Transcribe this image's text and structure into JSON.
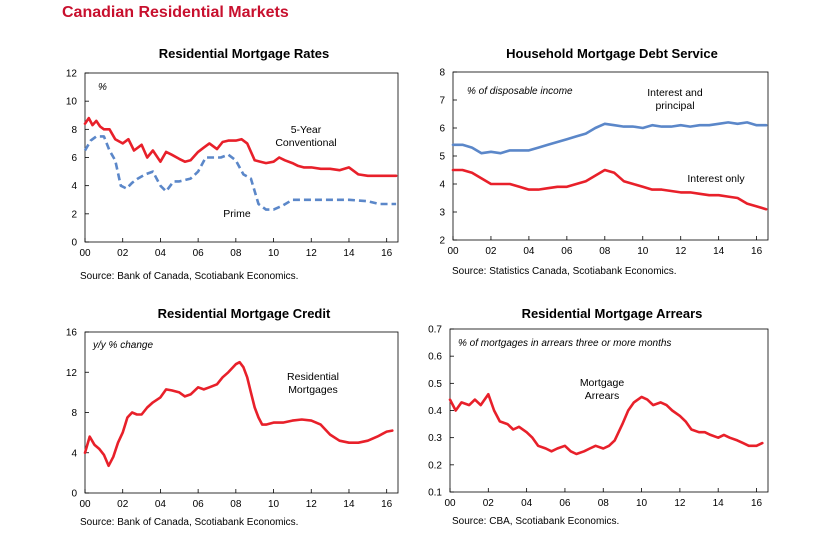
{
  "page_title": "Canadian Residential Markets",
  "chart_data": [
    {
      "type": "line",
      "title": "Residential Mortgage Rates",
      "ylabel": "%",
      "source": "Source: Bank of Canada, Scotiabank Economics.",
      "ylim": [
        0,
        12
      ],
      "yticks": [
        "0",
        "2",
        "4",
        "6",
        "8",
        "10",
        "12"
      ],
      "xlim": [
        2000,
        2016.6
      ],
      "xticks": [
        "00",
        "02",
        "04",
        "06",
        "08",
        "10",
        "12",
        "14",
        "16"
      ],
      "series": [
        {
          "name": "5-Year Conventional",
          "label_lines": [
            "5-Year",
            "Conventional"
          ],
          "color": "#e8202a",
          "dash": "solid",
          "x": [
            2000.0,
            2000.2,
            2000.4,
            2000.6,
            2000.8,
            2001.0,
            2001.3,
            2001.6,
            2002.0,
            2002.3,
            2002.6,
            2003.0,
            2003.3,
            2003.6,
            2004.0,
            2004.3,
            2004.6,
            2005.0,
            2005.3,
            2005.6,
            2006.0,
            2006.3,
            2006.6,
            2007.0,
            2007.3,
            2007.6,
            2008.0,
            2008.3,
            2008.6,
            2009.0,
            2009.3,
            2009.6,
            2010.0,
            2010.3,
            2010.6,
            2011.0,
            2011.3,
            2011.6,
            2012.0,
            2012.5,
            2013.0,
            2013.5,
            2014.0,
            2014.5,
            2015.0,
            2015.5,
            2016.0,
            2016.5
          ],
          "y": [
            8.4,
            8.8,
            8.3,
            8.6,
            8.2,
            8.0,
            8.0,
            7.3,
            7.0,
            7.3,
            6.5,
            6.9,
            6.0,
            6.5,
            5.7,
            6.4,
            6.2,
            5.9,
            5.7,
            5.8,
            6.4,
            6.7,
            7.0,
            6.6,
            7.1,
            7.2,
            7.2,
            7.3,
            7.0,
            5.8,
            5.7,
            5.6,
            5.7,
            6.0,
            5.8,
            5.6,
            5.4,
            5.3,
            5.3,
            5.2,
            5.2,
            5.1,
            5.3,
            4.8,
            4.7,
            4.7,
            4.7,
            4.7
          ]
        },
        {
          "name": "Prime",
          "color": "#5b87c9",
          "dash": "dash",
          "x": [
            2000.0,
            2000.3,
            2000.6,
            2001.0,
            2001.3,
            2001.6,
            2001.9,
            2002.2,
            2002.5,
            2002.8,
            2003.2,
            2003.6,
            2004.0,
            2004.3,
            2004.7,
            2005.0,
            2005.6,
            2006.0,
            2006.4,
            2006.8,
            2007.2,
            2007.6,
            2008.0,
            2008.4,
            2008.8,
            2009.2,
            2009.6,
            2010.0,
            2010.5,
            2011.0,
            2012.0,
            2013.0,
            2014.0,
            2015.0,
            2015.6,
            2016.5
          ],
          "y": [
            6.5,
            7.2,
            7.5,
            7.5,
            6.5,
            5.8,
            4.0,
            3.8,
            4.2,
            4.5,
            4.8,
            5.0,
            4.0,
            3.6,
            4.3,
            4.3,
            4.5,
            5.0,
            6.0,
            6.0,
            6.0,
            6.2,
            5.8,
            4.8,
            4.5,
            2.7,
            2.3,
            2.3,
            2.6,
            3.0,
            3.0,
            3.0,
            3.0,
            2.9,
            2.7,
            2.7
          ]
        }
      ]
    },
    {
      "type": "line",
      "title": "Household Mortgage Debt Service",
      "ylabel": "% of disposable income",
      "source": "Source: Statistics Canada, Scotiabank Economics.",
      "ylim": [
        2,
        8
      ],
      "yticks": [
        "2",
        "3",
        "4",
        "5",
        "6",
        "7",
        "8"
      ],
      "xlim": [
        2000,
        2016.6
      ],
      "xticks": [
        "00",
        "02",
        "04",
        "06",
        "08",
        "10",
        "12",
        "14",
        "16"
      ],
      "series": [
        {
          "name": "Interest and principal",
          "label_lines": [
            "Interest and",
            "principal"
          ],
          "color": "#5b87c9",
          "dash": "solid",
          "x": [
            2000.0,
            2000.5,
            2001.0,
            2001.5,
            2002.0,
            2002.5,
            2003.0,
            2003.5,
            2004.0,
            2004.5,
            2005.0,
            2005.5,
            2006.0,
            2006.5,
            2007.0,
            2007.5,
            2008.0,
            2008.5,
            2009.0,
            2009.5,
            2010.0,
            2010.5,
            2011.0,
            2011.5,
            2012.0,
            2012.5,
            2013.0,
            2013.5,
            2014.0,
            2014.5,
            2015.0,
            2015.5,
            2016.0,
            2016.5
          ],
          "y": [
            5.4,
            5.4,
            5.3,
            5.1,
            5.15,
            5.1,
            5.2,
            5.2,
            5.2,
            5.3,
            5.4,
            5.5,
            5.6,
            5.7,
            5.8,
            6.0,
            6.15,
            6.1,
            6.05,
            6.05,
            6.0,
            6.1,
            6.05,
            6.05,
            6.1,
            6.05,
            6.1,
            6.1,
            6.15,
            6.2,
            6.15,
            6.2,
            6.1,
            6.1
          ]
        },
        {
          "name": "Interest only",
          "color": "#e8202a",
          "dash": "solid",
          "x": [
            2000.0,
            2000.5,
            2001.0,
            2001.5,
            2002.0,
            2002.5,
            2003.0,
            2003.5,
            2004.0,
            2004.5,
            2005.0,
            2005.5,
            2006.0,
            2006.5,
            2007.0,
            2007.5,
            2008.0,
            2008.5,
            2009.0,
            2009.5,
            2010.0,
            2010.5,
            2011.0,
            2011.5,
            2012.0,
            2012.5,
            2013.0,
            2013.5,
            2014.0,
            2014.5,
            2015.0,
            2015.5,
            2016.0,
            2016.5
          ],
          "y": [
            4.5,
            4.5,
            4.4,
            4.2,
            4.0,
            4.0,
            4.0,
            3.9,
            3.8,
            3.8,
            3.85,
            3.9,
            3.9,
            4.0,
            4.1,
            4.3,
            4.5,
            4.4,
            4.1,
            4.0,
            3.9,
            3.8,
            3.8,
            3.75,
            3.7,
            3.7,
            3.65,
            3.6,
            3.6,
            3.55,
            3.5,
            3.3,
            3.2,
            3.1
          ]
        }
      ]
    },
    {
      "type": "line",
      "title": "Residential Mortgage Credit",
      "ylabel": "y/y % change",
      "source": "Source: Bank of Canada, Scotiabank Economics.",
      "ylim": [
        0,
        16
      ],
      "yticks": [
        "0",
        "4",
        "8",
        "12",
        "16"
      ],
      "xlim": [
        2000,
        2016.6
      ],
      "xticks": [
        "00",
        "02",
        "04",
        "06",
        "08",
        "10",
        "12",
        "14",
        "16"
      ],
      "series": [
        {
          "name": "Residential Mortgages",
          "label_lines": [
            "Residential",
            "Mortgages"
          ],
          "color": "#e8202a",
          "dash": "solid",
          "x": [
            2000.0,
            2000.25,
            2000.5,
            2000.75,
            2001.0,
            2001.25,
            2001.5,
            2001.75,
            2002.0,
            2002.25,
            2002.5,
            2002.75,
            2003.0,
            2003.3,
            2003.6,
            2004.0,
            2004.3,
            2004.6,
            2005.0,
            2005.3,
            2005.6,
            2006.0,
            2006.3,
            2006.6,
            2007.0,
            2007.3,
            2007.6,
            2008.0,
            2008.2,
            2008.4,
            2008.6,
            2008.8,
            2009.0,
            2009.2,
            2009.4,
            2009.6,
            2010.0,
            2010.5,
            2011.0,
            2011.5,
            2012.0,
            2012.5,
            2013.0,
            2013.5,
            2014.0,
            2014.5,
            2015.0,
            2015.5,
            2016.0,
            2016.3
          ],
          "y": [
            4.0,
            5.6,
            4.8,
            4.4,
            3.8,
            2.7,
            3.6,
            5.0,
            6.0,
            7.5,
            8.0,
            7.8,
            7.8,
            8.5,
            9.0,
            9.5,
            10.3,
            10.2,
            10.0,
            9.6,
            9.8,
            10.5,
            10.3,
            10.5,
            10.8,
            11.5,
            12.0,
            12.8,
            13.0,
            12.5,
            11.5,
            10.0,
            8.5,
            7.5,
            6.8,
            6.8,
            7.0,
            7.0,
            7.2,
            7.3,
            7.2,
            6.8,
            5.8,
            5.2,
            5.0,
            5.0,
            5.2,
            5.6,
            6.1,
            6.2
          ]
        }
      ]
    },
    {
      "type": "line",
      "title": "Residential Mortgage Arrears",
      "ylabel": "% of mortgages in arrears three or more months",
      "source": "Source: CBA, Scotiabank Economics.",
      "ylim": [
        0.1,
        0.7
      ],
      "yticks": [
        "0.1",
        "0.2",
        "0.3",
        "0.4",
        "0.5",
        "0.6",
        "0.7"
      ],
      "xlim": [
        2000,
        2016.6
      ],
      "xticks": [
        "00",
        "02",
        "04",
        "06",
        "08",
        "10",
        "12",
        "14",
        "16"
      ],
      "series": [
        {
          "name": "Mortgage Arrears",
          "label_lines": [
            "Mortgage",
            "Arrears"
          ],
          "color": "#e8202a",
          "dash": "solid",
          "x": [
            2000.0,
            2000.3,
            2000.6,
            2001.0,
            2001.3,
            2001.6,
            2002.0,
            2002.3,
            2002.6,
            2003.0,
            2003.3,
            2003.6,
            2004.0,
            2004.3,
            2004.6,
            2005.0,
            2005.3,
            2005.6,
            2006.0,
            2006.3,
            2006.6,
            2007.0,
            2007.3,
            2007.6,
            2008.0,
            2008.3,
            2008.6,
            2009.0,
            2009.3,
            2009.6,
            2010.0,
            2010.3,
            2010.6,
            2011.0,
            2011.3,
            2011.6,
            2012.0,
            2012.3,
            2012.6,
            2013.0,
            2013.3,
            2013.6,
            2014.0,
            2014.3,
            2014.6,
            2015.0,
            2015.3,
            2015.6,
            2016.0,
            2016.3
          ],
          "y": [
            0.44,
            0.4,
            0.43,
            0.42,
            0.44,
            0.42,
            0.46,
            0.4,
            0.36,
            0.35,
            0.33,
            0.34,
            0.32,
            0.3,
            0.27,
            0.26,
            0.25,
            0.26,
            0.27,
            0.25,
            0.24,
            0.25,
            0.26,
            0.27,
            0.26,
            0.27,
            0.29,
            0.35,
            0.4,
            0.43,
            0.45,
            0.44,
            0.42,
            0.43,
            0.42,
            0.4,
            0.38,
            0.36,
            0.33,
            0.32,
            0.32,
            0.31,
            0.3,
            0.31,
            0.3,
            0.29,
            0.28,
            0.27,
            0.27,
            0.28
          ]
        }
      ]
    }
  ]
}
